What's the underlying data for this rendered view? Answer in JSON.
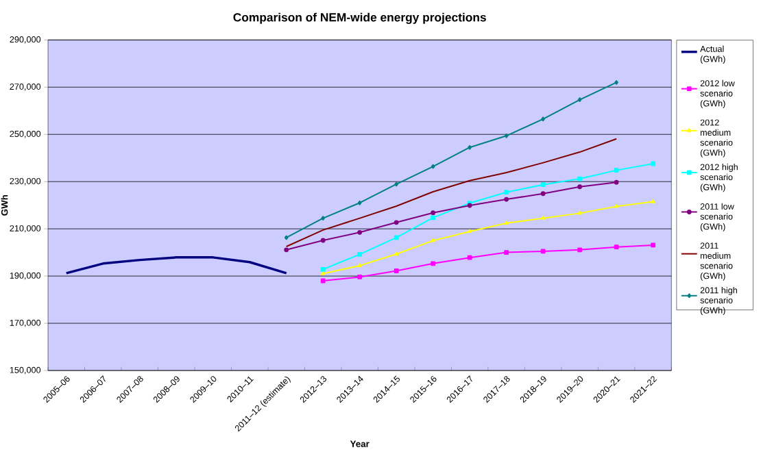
{
  "chart_data": {
    "type": "line",
    "title": "Comparison of NEM-wide energy projections",
    "xlabel": "Year",
    "ylabel": "GWh",
    "categories": [
      "2005–06",
      "2006–07",
      "2007–08",
      "2008–09",
      "2009–10",
      "2010–11",
      "2011–12 (estimate)",
      "2012–13",
      "2013–14",
      "2014–15",
      "2015–16",
      "2016–17",
      "2017–18",
      "2018–19",
      "2019–20",
      "2020–21",
      "2021–22"
    ],
    "series": [
      {
        "name": "Actual (GWh)",
        "color": "#000080",
        "marker": "none",
        "values": [
          191200,
          195300,
          196800,
          197900,
          197900,
          195900,
          191200,
          null,
          null,
          null,
          null,
          null,
          null,
          null,
          null,
          null,
          null
        ]
      },
      {
        "name": "2012 low scenario (GWh)",
        "color": "#ff00ff",
        "marker": "square",
        "values": [
          null,
          null,
          null,
          null,
          null,
          null,
          null,
          188000,
          189600,
          192200,
          195300,
          197800,
          200000,
          200500,
          201100,
          202300,
          203100
        ]
      },
      {
        "name": "2012 medium scenario (GWh)",
        "color": "#ffff00",
        "marker": "triangle",
        "values": [
          null,
          null,
          null,
          null,
          null,
          null,
          null,
          191000,
          194400,
          199300,
          205000,
          208900,
          212400,
          214500,
          216600,
          219500,
          221500
        ]
      },
      {
        "name": "2012 high scenario (GWh)",
        "color": "#00ffff",
        "marker": "square",
        "values": [
          null,
          null,
          null,
          null,
          null,
          null,
          null,
          192800,
          199200,
          206300,
          214700,
          220900,
          225500,
          228700,
          231200,
          234800,
          237600
        ]
      },
      {
        "name": "2011 low scenario (GWh)",
        "color": "#800080",
        "marker": "circle",
        "values": [
          null,
          null,
          null,
          null,
          null,
          null,
          201100,
          205100,
          208500,
          212700,
          216800,
          219900,
          222500,
          224900,
          227800,
          229700,
          null
        ]
      },
      {
        "name": "2011 medium scenario (GWh)",
        "color": "#800000",
        "marker": "none",
        "values": [
          null,
          null,
          null,
          null,
          null,
          null,
          202500,
          209500,
          214500,
          219600,
          225700,
          230400,
          233800,
          238000,
          242500,
          248100,
          null
        ]
      },
      {
        "name": "2011 high scenario (GWh)",
        "color": "#008080",
        "marker": "diamond",
        "values": [
          null,
          null,
          null,
          null,
          null,
          null,
          206300,
          214500,
          221000,
          228900,
          236400,
          244500,
          249400,
          256500,
          264700,
          272000,
          null
        ]
      }
    ],
    "ylim": [
      150000,
      290000
    ],
    "yticks": [
      {
        "value": 150000,
        "label": "150,000"
      },
      {
        "value": 170000,
        "label": "170,000"
      },
      {
        "value": 190000,
        "label": "190,000"
      },
      {
        "value": 210000,
        "label": "210,000"
      },
      {
        "value": 230000,
        "label": "230,000"
      },
      {
        "value": 250000,
        "label": "250,000"
      },
      {
        "value": 270000,
        "label": "270,000"
      },
      {
        "value": 290000,
        "label": "290,000"
      }
    ],
    "grid": "y",
    "legend": "right"
  }
}
